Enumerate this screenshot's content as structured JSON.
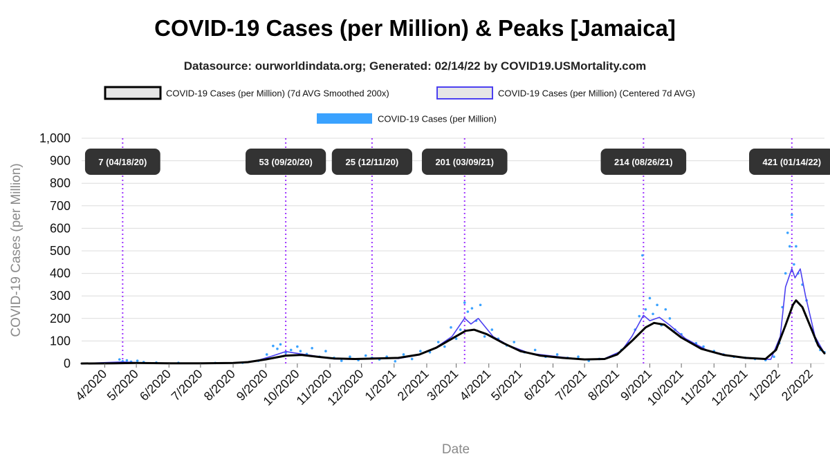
{
  "title": "COVID-19 Cases (per Million) & Peaks [Jamaica]",
  "subtitle": "Datasource: ourworldindata.org; Generated: 02/14/22 by COVID19.USMortality.com",
  "chart_data": {
    "type": "line",
    "xlabel": "Date",
    "ylabel": "COVID-19 Cases (per Million)",
    "ylim": [
      0,
      1000
    ],
    "xlim": [
      "2020-03-10",
      "2022-02-14"
    ],
    "grid": true,
    "legend_position": "top",
    "y_ticks": [
      "0",
      "100",
      "200",
      "300",
      "400",
      "500",
      "600",
      "700",
      "800",
      "900",
      "1,000"
    ],
    "x_ticks": [
      {
        "date": "2020-04-01",
        "label": "4/2020"
      },
      {
        "date": "2020-05-01",
        "label": "5/2020"
      },
      {
        "date": "2020-06-01",
        "label": "6/2020"
      },
      {
        "date": "2020-07-01",
        "label": "7/2020"
      },
      {
        "date": "2020-08-01",
        "label": "8/2020"
      },
      {
        "date": "2020-09-01",
        "label": "9/2020"
      },
      {
        "date": "2020-10-01",
        "label": "10/2020"
      },
      {
        "date": "2020-11-01",
        "label": "11/2020"
      },
      {
        "date": "2020-12-01",
        "label": "12/2020"
      },
      {
        "date": "2021-01-01",
        "label": "1/2021"
      },
      {
        "date": "2021-02-01",
        "label": "2/2021"
      },
      {
        "date": "2021-03-01",
        "label": "3/2021"
      },
      {
        "date": "2021-04-01",
        "label": "4/2021"
      },
      {
        "date": "2021-05-01",
        "label": "5/2021"
      },
      {
        "date": "2021-06-01",
        "label": "6/2021"
      },
      {
        "date": "2021-07-01",
        "label": "7/2021"
      },
      {
        "date": "2021-08-01",
        "label": "8/2021"
      },
      {
        "date": "2021-09-01",
        "label": "9/2021"
      },
      {
        "date": "2021-10-01",
        "label": "10/2021"
      },
      {
        "date": "2021-11-01",
        "label": "11/2021"
      },
      {
        "date": "2021-12-01",
        "label": "12/2021"
      },
      {
        "date": "2022-01-01",
        "label": "1/2022"
      },
      {
        "date": "2022-02-01",
        "label": "2/2022"
      }
    ],
    "legend": [
      {
        "name": "COVID-19 Cases (per Million) (7d AVG Smoothed 200x)",
        "color": "#000000",
        "fill": "#e6e6e6",
        "kind": "box"
      },
      {
        "name": "COVID-19 Cases (per Million) (Centered 7d AVG)",
        "color": "#4b3ff0",
        "fill": "#e6e6e6",
        "kind": "box"
      },
      {
        "name": "COVID-19 Cases (per Million)",
        "color": "#3aa2ff",
        "fill": "#3aa2ff",
        "kind": "bar"
      }
    ],
    "peaks": [
      {
        "date": "2020-04-18",
        "label": "7 (04/18/20)"
      },
      {
        "date": "2020-09-20",
        "label": "53 (09/20/20)"
      },
      {
        "date": "2020-12-11",
        "label": "25 (12/11/20)"
      },
      {
        "date": "2021-03-09",
        "label": "201 (03/09/21)"
      },
      {
        "date": "2021-08-26",
        "label": "214 (08/26/21)"
      },
      {
        "date": "2022-01-14",
        "label": "421 (01/14/22)"
      }
    ],
    "series": [
      {
        "name": "COVID-19 Cases (per Million) (7d AVG Smoothed 200x)",
        "color": "#000000",
        "points": [
          [
            "2020-03-10",
            0
          ],
          [
            "2020-04-10",
            1
          ],
          [
            "2020-05-01",
            2
          ],
          [
            "2020-06-01",
            1
          ],
          [
            "2020-07-01",
            1
          ],
          [
            "2020-08-01",
            2
          ],
          [
            "2020-08-15",
            6
          ],
          [
            "2020-09-01",
            18
          ],
          [
            "2020-09-20",
            35
          ],
          [
            "2020-10-05",
            38
          ],
          [
            "2020-10-20",
            30
          ],
          [
            "2020-11-05",
            22
          ],
          [
            "2020-11-25",
            20
          ],
          [
            "2020-12-15",
            22
          ],
          [
            "2021-01-05",
            25
          ],
          [
            "2021-01-25",
            40
          ],
          [
            "2021-02-10",
            70
          ],
          [
            "2021-02-25",
            110
          ],
          [
            "2021-03-10",
            145
          ],
          [
            "2021-03-18",
            150
          ],
          [
            "2021-03-30",
            130
          ],
          [
            "2021-04-15",
            90
          ],
          [
            "2021-05-01",
            55
          ],
          [
            "2021-05-20",
            35
          ],
          [
            "2021-06-10",
            25
          ],
          [
            "2021-07-01",
            18
          ],
          [
            "2021-07-20",
            20
          ],
          [
            "2021-08-01",
            40
          ],
          [
            "2021-08-15",
            100
          ],
          [
            "2021-08-28",
            160
          ],
          [
            "2021-09-05",
            180
          ],
          [
            "2021-09-15",
            172
          ],
          [
            "2021-10-01",
            115
          ],
          [
            "2021-10-20",
            65
          ],
          [
            "2021-11-10",
            38
          ],
          [
            "2021-12-01",
            25
          ],
          [
            "2021-12-20",
            20
          ],
          [
            "2021-12-30",
            60
          ],
          [
            "2022-01-08",
            170
          ],
          [
            "2022-01-15",
            260
          ],
          [
            "2022-01-18",
            280
          ],
          [
            "2022-01-24",
            250
          ],
          [
            "2022-02-01",
            160
          ],
          [
            "2022-02-08",
            80
          ],
          [
            "2022-02-14",
            45
          ]
        ]
      },
      {
        "name": "COVID-19 Cases (per Million) (Centered 7d AVG)",
        "color": "#4b3ff0",
        "points": [
          [
            "2020-03-10",
            0
          ],
          [
            "2020-04-18",
            7
          ],
          [
            "2020-05-01",
            4
          ],
          [
            "2020-06-01",
            1
          ],
          [
            "2020-07-01",
            1
          ],
          [
            "2020-08-01",
            2
          ],
          [
            "2020-08-20",
            8
          ],
          [
            "2020-09-05",
            30
          ],
          [
            "2020-09-20",
            53
          ],
          [
            "2020-10-05",
            42
          ],
          [
            "2020-10-20",
            32
          ],
          [
            "2020-11-05",
            20
          ],
          [
            "2020-11-25",
            18
          ],
          [
            "2020-12-11",
            25
          ],
          [
            "2021-01-05",
            22
          ],
          [
            "2021-01-25",
            38
          ],
          [
            "2021-02-10",
            72
          ],
          [
            "2021-02-25",
            120
          ],
          [
            "2021-03-09",
            201
          ],
          [
            "2021-03-15",
            175
          ],
          [
            "2021-03-22",
            200
          ],
          [
            "2021-04-05",
            120
          ],
          [
            "2021-04-20",
            80
          ],
          [
            "2021-05-10",
            45
          ],
          [
            "2021-06-10",
            28
          ],
          [
            "2021-07-01",
            18
          ],
          [
            "2021-07-20",
            22
          ],
          [
            "2021-08-05",
            55
          ],
          [
            "2021-08-15",
            120
          ],
          [
            "2021-08-26",
            214
          ],
          [
            "2021-09-01",
            190
          ],
          [
            "2021-09-10",
            205
          ],
          [
            "2021-09-20",
            170
          ],
          [
            "2021-10-05",
            110
          ],
          [
            "2021-10-25",
            60
          ],
          [
            "2021-11-15",
            35
          ],
          [
            "2021-12-05",
            22
          ],
          [
            "2021-12-25",
            18
          ],
          [
            "2022-01-03",
            120
          ],
          [
            "2022-01-08",
            340
          ],
          [
            "2022-01-14",
            421
          ],
          [
            "2022-01-17",
            380
          ],
          [
            "2022-01-22",
            420
          ],
          [
            "2022-01-27",
            300
          ],
          [
            "2022-02-05",
            120
          ],
          [
            "2022-02-14",
            45
          ]
        ]
      }
    ],
    "scatter": {
      "name": "COVID-19 Cases (per Million)",
      "color": "#3aa2ff",
      "points": [
        [
          "2020-04-15",
          18
        ],
        [
          "2020-04-18",
          10
        ],
        [
          "2020-04-22",
          14
        ],
        [
          "2020-04-26",
          8
        ],
        [
          "2020-05-02",
          12
        ],
        [
          "2020-05-08",
          6
        ],
        [
          "2020-05-20",
          4
        ],
        [
          "2020-06-10",
          3
        ],
        [
          "2020-07-15",
          2
        ],
        [
          "2020-08-10",
          3
        ],
        [
          "2020-08-25",
          12
        ],
        [
          "2020-09-02",
          40
        ],
        [
          "2020-09-08",
          78
        ],
        [
          "2020-09-12",
          65
        ],
        [
          "2020-09-15",
          85
        ],
        [
          "2020-09-20",
          48
        ],
        [
          "2020-09-25",
          60
        ],
        [
          "2020-10-01",
          75
        ],
        [
          "2020-10-04",
          55
        ],
        [
          "2020-10-10",
          42
        ],
        [
          "2020-10-15",
          68
        ],
        [
          "2020-10-22",
          30
        ],
        [
          "2020-10-28",
          55
        ],
        [
          "2020-11-05",
          25
        ],
        [
          "2020-11-12",
          12
        ],
        [
          "2020-11-20",
          30
        ],
        [
          "2020-11-28",
          15
        ],
        [
          "2020-12-05",
          35
        ],
        [
          "2020-12-11",
          25
        ],
        [
          "2020-12-18",
          18
        ],
        [
          "2020-12-25",
          30
        ],
        [
          "2021-01-02",
          10
        ],
        [
          "2021-01-10",
          40
        ],
        [
          "2021-01-18",
          20
        ],
        [
          "2021-01-26",
          55
        ],
        [
          "2021-02-04",
          50
        ],
        [
          "2021-02-12",
          95
        ],
        [
          "2021-02-18",
          75
        ],
        [
          "2021-02-24",
          160
        ],
        [
          "2021-03-01",
          110
        ],
        [
          "2021-03-05",
          150
        ],
        [
          "2021-03-09",
          270
        ],
        [
          "2021-03-12",
          230
        ],
        [
          "2021-03-16",
          245
        ],
        [
          "2021-03-20",
          190
        ],
        [
          "2021-03-24",
          260
        ],
        [
          "2021-03-28",
          120
        ],
        [
          "2021-04-04",
          150
        ],
        [
          "2021-04-10",
          110
        ],
        [
          "2021-04-18",
          80
        ],
        [
          "2021-04-25",
          95
        ],
        [
          "2021-05-05",
          50
        ],
        [
          "2021-05-15",
          60
        ],
        [
          "2021-05-25",
          30
        ],
        [
          "2021-06-05",
          40
        ],
        [
          "2021-06-15",
          25
        ],
        [
          "2021-06-25",
          30
        ],
        [
          "2021-07-05",
          12
        ],
        [
          "2021-07-15",
          20
        ],
        [
          "2021-07-28",
          35
        ],
        [
          "2021-08-05",
          60
        ],
        [
          "2021-08-12",
          90
        ],
        [
          "2021-08-18",
          150
        ],
        [
          "2021-08-22",
          210
        ],
        [
          "2021-08-25",
          480
        ],
        [
          "2021-08-28",
          240
        ],
        [
          "2021-09-01",
          290
        ],
        [
          "2021-09-04",
          220
        ],
        [
          "2021-09-08",
          260
        ],
        [
          "2021-09-12",
          170
        ],
        [
          "2021-09-16",
          240
        ],
        [
          "2021-09-20",
          200
        ],
        [
          "2021-09-25",
          150
        ],
        [
          "2021-10-01",
          130
        ],
        [
          "2021-10-08",
          100
        ],
        [
          "2021-10-15",
          90
        ],
        [
          "2021-10-22",
          75
        ],
        [
          "2021-11-01",
          55
        ],
        [
          "2021-11-10",
          40
        ],
        [
          "2021-11-20",
          30
        ],
        [
          "2021-12-01",
          25
        ],
        [
          "2021-12-10",
          20
        ],
        [
          "2021-12-20",
          15
        ],
        [
          "2021-12-28",
          30
        ],
        [
          "2022-01-02",
          90
        ],
        [
          "2022-01-05",
          250
        ],
        [
          "2022-01-08",
          400
        ],
        [
          "2022-01-10",
          580
        ],
        [
          "2022-01-12",
          520
        ],
        [
          "2022-01-14",
          660
        ],
        [
          "2022-01-16",
          440
        ],
        [
          "2022-01-18",
          520
        ],
        [
          "2022-01-20",
          400
        ],
        [
          "2022-01-24",
          350
        ],
        [
          "2022-01-28",
          280
        ],
        [
          "2022-02-02",
          150
        ],
        [
          "2022-02-06",
          100
        ],
        [
          "2022-02-10",
          60
        ],
        [
          "2022-02-14",
          50
        ]
      ]
    }
  }
}
